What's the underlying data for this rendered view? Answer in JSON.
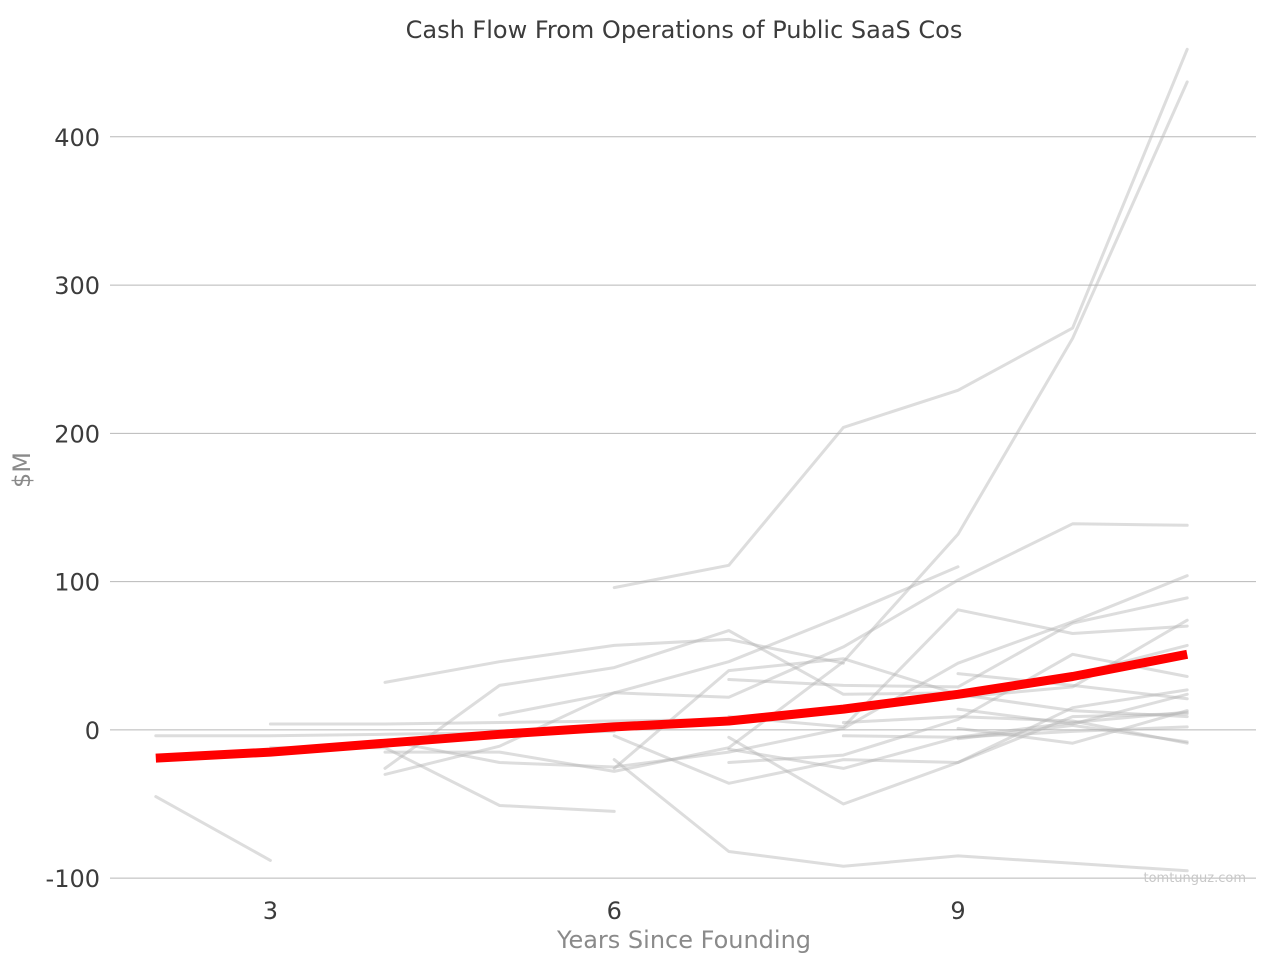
{
  "chart_data": {
    "type": "line",
    "title": "Cash Flow From Operations of Public SaaS Cos",
    "xlabel": "Years Since Founding",
    "ylabel": "$M",
    "xlim": [
      1.6,
      11.6
    ],
    "ylim": [
      -110,
      470
    ],
    "x_ticks": [
      3,
      6,
      9
    ],
    "y_ticks": [
      400,
      300,
      200,
      100,
      0,
      -100
    ],
    "y_tick_labels": [
      "400",
      "300",
      "200",
      "100",
      "0",
      "-100"
    ],
    "grid": "horizontal",
    "watermark": "tomtunguz.com",
    "colors": {
      "trend": "#ff0000",
      "companies": "#b4b4b4"
    },
    "trend": {
      "x": [
        2,
        3,
        4,
        5,
        6,
        7,
        8,
        9,
        10,
        11
      ],
      "y": [
        -19,
        -15,
        -9,
        -3,
        2,
        6,
        14,
        24,
        36,
        51
      ]
    },
    "series": [
      {
        "x": [
          2,
          3
        ],
        "y": [
          -45,
          -88
        ]
      },
      {
        "x": [
          2,
          3,
          4,
          5,
          6
        ],
        "y": [
          -4,
          -4,
          -3,
          -2,
          -1
        ]
      },
      {
        "x": [
          3,
          4,
          5,
          6,
          7
        ],
        "y": [
          4,
          4,
          5,
          6,
          7
        ]
      },
      {
        "x": [
          3,
          4,
          5,
          6
        ],
        "y": [
          -12,
          -12,
          -51,
          -55
        ]
      },
      {
        "x": [
          4,
          5,
          6,
          7,
          8
        ],
        "y": [
          32,
          46,
          57,
          61,
          45
        ]
      },
      {
        "x": [
          4,
          5,
          6,
          7,
          8,
          9
        ],
        "y": [
          -30,
          -11,
          25,
          46,
          77,
          110
        ]
      },
      {
        "x": [
          4,
          5,
          6,
          7,
          8,
          9,
          10,
          11
        ],
        "y": [
          -7,
          -22,
          -25,
          -15,
          1,
          45,
          73,
          104
        ]
      },
      {
        "x": [
          4,
          5,
          6,
          7,
          8,
          9,
          10,
          11
        ],
        "y": [
          -15,
          -15,
          -28,
          -12,
          46,
          132,
          264,
          437
        ]
      },
      {
        "x": [
          4,
          5,
          6,
          7,
          8,
          9,
          10,
          11
        ],
        "y": [
          -26,
          30,
          42,
          67,
          24,
          25,
          37,
          57
        ]
      },
      {
        "x": [
          5,
          6,
          7,
          8,
          9,
          10,
          11
        ],
        "y": [
          10,
          25,
          22,
          56,
          101,
          139,
          138
        ]
      },
      {
        "x": [
          6,
          7,
          8,
          9,
          10,
          11
        ],
        "y": [
          96,
          111,
          204,
          229,
          271,
          459
        ]
      },
      {
        "x": [
          6,
          7,
          8,
          9,
          10,
          11
        ],
        "y": [
          -20,
          -82,
          -92,
          -85,
          -90,
          -95
        ]
      },
      {
        "x": [
          6,
          7,
          8,
          9,
          10,
          11
        ],
        "y": [
          -26,
          40,
          48,
          24,
          13,
          9
        ]
      },
      {
        "x": [
          6,
          7,
          8,
          9,
          10,
          11
        ],
        "y": [
          -4,
          -36,
          -20,
          -22,
          9,
          11
        ]
      },
      {
        "x": [
          7,
          8,
          9,
          10,
          11
        ],
        "y": [
          34,
          30,
          29,
          72,
          89
        ]
      },
      {
        "x": [
          7,
          8,
          9,
          10,
          11
        ],
        "y": [
          -5,
          -50,
          -22,
          15,
          27
        ]
      },
      {
        "x": [
          7,
          8,
          9,
          10,
          11
        ],
        "y": [
          -13,
          -26,
          -5,
          5,
          12
        ]
      },
      {
        "x": [
          7,
          8,
          9,
          10,
          11
        ],
        "y": [
          9,
          2,
          81,
          65,
          70
        ]
      },
      {
        "x": [
          7,
          8,
          9,
          10,
          11
        ],
        "y": [
          -22,
          -17,
          7,
          51,
          36
        ]
      },
      {
        "x": [
          8,
          9,
          10,
          11
        ],
        "y": [
          -4,
          -5,
          -1,
          2
        ]
      },
      {
        "x": [
          8,
          9,
          10,
          11
        ],
        "y": [
          5,
          9,
          6,
          -9
        ]
      },
      {
        "x": [
          8,
          9,
          10,
          11
        ],
        "y": [
          15,
          22,
          29,
          74
        ]
      },
      {
        "x": [
          9,
          10,
          11
        ],
        "y": [
          -6,
          3,
          -8
        ]
      },
      {
        "x": [
          9,
          10,
          11
        ],
        "y": [
          14,
          4,
          24
        ]
      },
      {
        "x": [
          9,
          10,
          11
        ],
        "y": [
          1,
          -9,
          13
        ]
      },
      {
        "x": [
          9,
          10,
          11
        ],
        "y": [
          38,
          30,
          21
        ]
      }
    ]
  }
}
